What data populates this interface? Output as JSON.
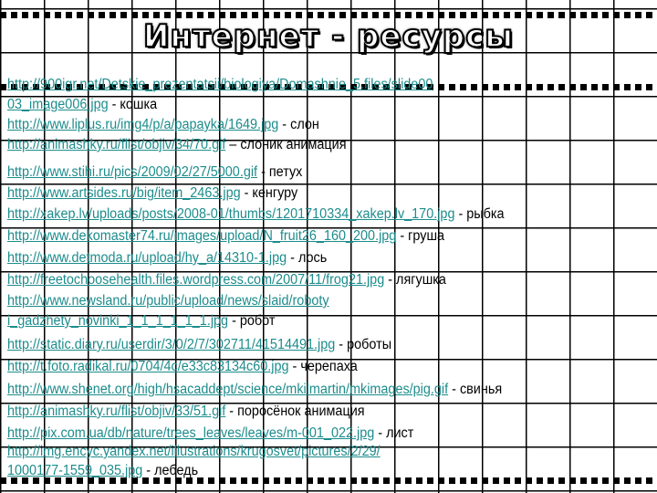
{
  "title": "Интернет - ресурсы",
  "lines": [
    {
      "url": "http://900igr.net/Detskie_prezentatsii/biologiya/Domashnie_5.files/slide00",
      "text": ""
    },
    {
      "url": "03_image006.jpg",
      "text": " - кошка"
    },
    {
      "url": "http://www.liplus.ru/img4/p/a/papayka/1649.jpg",
      "text": " - слон"
    },
    {
      "url": "http://animashky.ru/flist/objiv/34/70.gif",
      "text": " – слоник анимация"
    },
    {
      "url": "http://www.stihi.ru/pics/2009/02/27/5000.gif",
      "text": " - петух"
    },
    {
      "url": "http://www.artsides.ru/big/item_2463.jpg",
      "text": " - кенгуру"
    },
    {
      "url": "http://xakep.lv/uploads/posts/2008-01/thumbs/1201710334_xakep.lv_170.jpg",
      "text": " - рыбка"
    },
    {
      "url": "http://www.dekomaster74.ru/images/upload/N_fruit26_160_200.jpg",
      "text": " - груша"
    },
    {
      "url": "http://www.detmoda.ru/upload/hy_a/14310-1.jpg",
      "text": " - лось"
    },
    {
      "url": "http://freetochoosehealth.files.wordpress.com/2007/11/frog21.jpg",
      "text": " - лягушка"
    },
    {
      "url": "http://www.newsland.ru/public/upload/news/slaid/roboty",
      "text": ""
    },
    {
      "url": "i_gadzhety_novinki_1_1_1_1_1_1.jpg",
      "text": " - робот"
    },
    {
      "url": "http://static.diary.ru/userdir/3/0/2/7/302711/41514491.jpg",
      "text": " - роботы"
    },
    {
      "url": "http://t.foto.radikal.ru/0704/4c/e33c83134c60.jpg",
      "text": " - черепаха"
    },
    {
      "url": "http://www.shenet.org/high/hsacaddept/science/mkilmartin/mkimages/pig.gif",
      "text": " - свинья"
    },
    {
      "url": "http://animashky.ru/flist/objiv/33/51.gif",
      "text": " - поросёнок анимация"
    },
    {
      "url": "http://pix.com.ua/db/nature/trees_leaves/leaves/m-001_022.jpg",
      "text": " - лист"
    },
    {
      "url": "http://img.encyc.yandex.net/illustrations/krugosvet/pictures/2/29/",
      "text": ""
    },
    {
      "url": "1000177-1559_035.jpg",
      "text": " - лебедь"
    }
  ],
  "colors": {
    "link": "#1d8c8c",
    "grid": "#000000"
  }
}
